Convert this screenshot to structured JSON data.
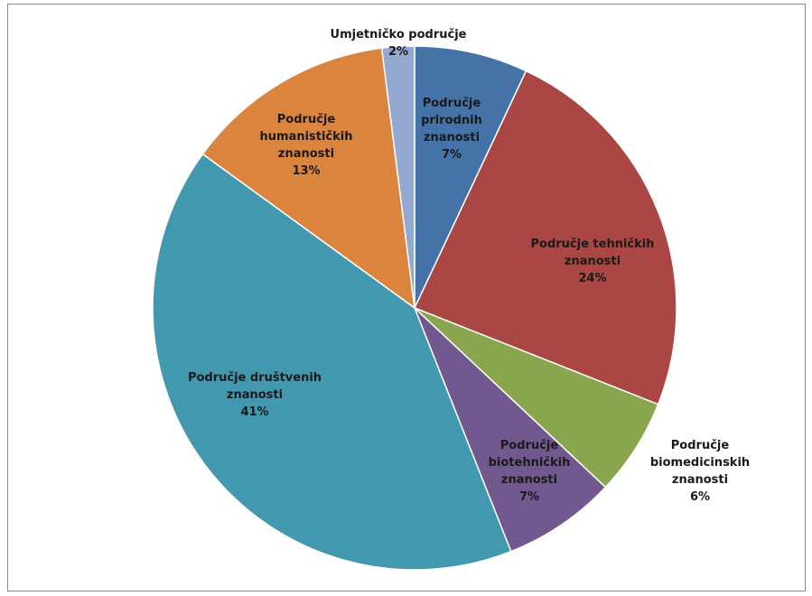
{
  "chart_data": {
    "type": "pie",
    "slices": [
      {
        "label_lines": [
          "Područje",
          "prirodnih",
          "znanosti"
        ],
        "value": 7,
        "pct_label": "7%",
        "color": "#4572A7"
      },
      {
        "label_lines": [
          "Područje tehničkih",
          "znanosti"
        ],
        "value": 24,
        "pct_label": "24%",
        "color": "#AA4643"
      },
      {
        "label_lines": [
          "Područje",
          "biomedicinskih",
          "znanosti"
        ],
        "value": 6,
        "pct_label": "6%",
        "color": "#89A54E"
      },
      {
        "label_lines": [
          "Područje",
          "biotehničkih",
          "znanosti"
        ],
        "value": 7,
        "pct_label": "7%",
        "color": "#71588F"
      },
      {
        "label_lines": [
          "Područje društvenih",
          "znanosti"
        ],
        "value": 41,
        "pct_label": "41%",
        "color": "#4198AF"
      },
      {
        "label_lines": [
          "Područje",
          "humanističkih",
          "znanosti"
        ],
        "value": 13,
        "pct_label": "13%",
        "color": "#DB843D"
      },
      {
        "label_lines": [
          "Umjetničko područje"
        ],
        "value": 2,
        "pct_label": "2%",
        "color": "#93A9CF"
      }
    ]
  }
}
